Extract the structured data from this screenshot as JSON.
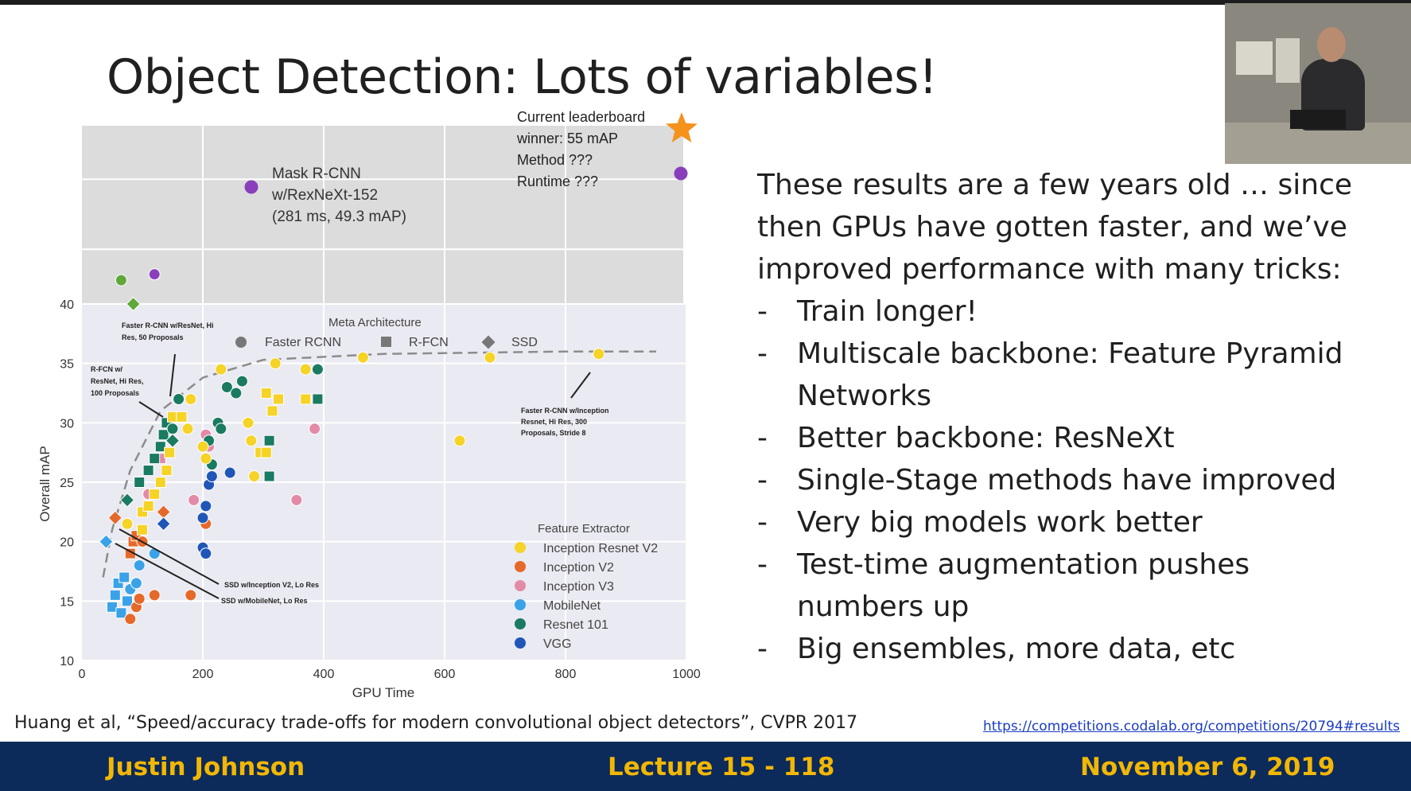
{
  "slide": {
    "title": "Object Detection: Lots of variables!",
    "intro_text": "These results are a few years old … since then GPUs have gotten faster, and we’ve improved performance with many tricks:",
    "bullets": [
      {
        "dash": "-",
        "text": "Train longer!"
      },
      {
        "dash": "-",
        "text": "Multiscale backbone: Feature Pyramid Networks"
      },
      {
        "dash": "-",
        "text": "Better backbone: ResNeXt"
      },
      {
        "dash": "-",
        "text": "Single-Stage methods have improved"
      },
      {
        "dash": "-",
        "text": "Very big models work better"
      },
      {
        "dash": "-",
        "text": "Test-time augmentation pushes numbers up"
      },
      {
        "dash": "-",
        "text": "Big ensembles, more data, etc"
      }
    ],
    "citation": "Huang et al, “Speed/accuracy trade-offs for modern convolutional object detectors”, CVPR 2017",
    "source_link": "https://competitions.codalab.org/competitions/20794#results"
  },
  "footer": {
    "author": "Justin Johnson",
    "lecture": "Lecture 15 - 118",
    "date": "November 6, 2019"
  },
  "colors": {
    "footer_bg": "#0c2a5a",
    "footer_text": "#f2b705",
    "plot_bg": "#eaeaf2",
    "upper_bg": "#dcdcdc",
    "inception_resnet_v2": "#f5d327",
    "inception_v2": "#e5692a",
    "inception_v3": "#e38aa6",
    "mobilenet": "#3aa2e8",
    "resnet_101": "#1a7a62",
    "vgg": "#2056b8",
    "mask_rcnn": "#8a3fba",
    "leaderboard_star": "#f5921c",
    "extra_green": "#5fa83a"
  },
  "chart_data": {
    "type": "scatter",
    "title": "",
    "xlabel": "GPU Time",
    "ylabel": "Overall mAP",
    "xlim": [
      0,
      1000
    ],
    "ylim": [
      10,
      40
    ],
    "x_ticks": [
      "0",
      "200",
      "400",
      "600",
      "800",
      "1000"
    ],
    "y_ticks": [
      "10",
      "15",
      "20",
      "25",
      "30",
      "35",
      "40"
    ],
    "grid": true,
    "legend_meta": {
      "title": "Meta Architecture",
      "entries": [
        {
          "label": "Faster RCNN",
          "marker": "circle"
        },
        {
          "label": "R-FCN",
          "marker": "square"
        },
        {
          "label": "SSD",
          "marker": "diamond"
        }
      ]
    },
    "legend_feature": {
      "title": "Feature Extractor",
      "entries": [
        {
          "label": "Inception Resnet V2",
          "key": "irv2"
        },
        {
          "label": "Inception V2",
          "key": "iv2"
        },
        {
          "label": "Inception V3",
          "key": "iv3"
        },
        {
          "label": "MobileNet",
          "key": "mob"
        },
        {
          "label": "Resnet 101",
          "key": "r101"
        },
        {
          "label": "VGG",
          "key": "vgg"
        }
      ]
    },
    "frontier": [
      [
        35,
        17
      ],
      [
        50,
        21
      ],
      [
        80,
        26
      ],
      [
        130,
        31
      ],
      [
        200,
        33.8
      ],
      [
        300,
        35.3
      ],
      [
        500,
        35.8
      ],
      [
        800,
        36
      ],
      [
        950,
        36
      ]
    ],
    "points": [
      {
        "x": 50,
        "y": 14.5,
        "f": "mob",
        "m": "s"
      },
      {
        "x": 55,
        "y": 15.5,
        "f": "mob",
        "m": "s"
      },
      {
        "x": 60,
        "y": 16.5,
        "f": "mob",
        "m": "s"
      },
      {
        "x": 65,
        "y": 14,
        "f": "mob",
        "m": "s"
      },
      {
        "x": 70,
        "y": 17,
        "f": "mob",
        "m": "s"
      },
      {
        "x": 75,
        "y": 15,
        "f": "mob",
        "m": "s"
      },
      {
        "x": 80,
        "y": 16,
        "f": "mob",
        "m": "c"
      },
      {
        "x": 90,
        "y": 16.5,
        "f": "mob",
        "m": "c"
      },
      {
        "x": 95,
        "y": 18,
        "f": "mob",
        "m": "c"
      },
      {
        "x": 120,
        "y": 19,
        "f": "mob",
        "m": "c"
      },
      {
        "x": 40,
        "y": 20,
        "f": "mob",
        "m": "d"
      },
      {
        "x": 55,
        "y": 22,
        "f": "iv2",
        "m": "d"
      },
      {
        "x": 80,
        "y": 19,
        "f": "iv2",
        "m": "s"
      },
      {
        "x": 85,
        "y": 20,
        "f": "iv2",
        "m": "s"
      },
      {
        "x": 90,
        "y": 20.5,
        "f": "iv2",
        "m": "s"
      },
      {
        "x": 100,
        "y": 20,
        "f": "iv2",
        "m": "c"
      },
      {
        "x": 80,
        "y": 13.5,
        "f": "iv2",
        "m": "c"
      },
      {
        "x": 90,
        "y": 14.5,
        "f": "iv2",
        "m": "c"
      },
      {
        "x": 95,
        "y": 15.2,
        "f": "iv2",
        "m": "c"
      },
      {
        "x": 120,
        "y": 15.5,
        "f": "iv2",
        "m": "c"
      },
      {
        "x": 180,
        "y": 15.5,
        "f": "iv2",
        "m": "c"
      },
      {
        "x": 135,
        "y": 22.5,
        "f": "iv2",
        "m": "d"
      },
      {
        "x": 205,
        "y": 21.5,
        "f": "iv2",
        "m": "c"
      },
      {
        "x": 110,
        "y": 24,
        "f": "iv3",
        "m": "c"
      },
      {
        "x": 185,
        "y": 23.5,
        "f": "iv3",
        "m": "c"
      },
      {
        "x": 205,
        "y": 29,
        "f": "iv3",
        "m": "c"
      },
      {
        "x": 210,
        "y": 28,
        "f": "iv3",
        "m": "c"
      },
      {
        "x": 355,
        "y": 23.5,
        "f": "iv3",
        "m": "c"
      },
      {
        "x": 385,
        "y": 29.5,
        "f": "iv3",
        "m": "c"
      },
      {
        "x": 130,
        "y": 27,
        "f": "iv3",
        "m": "s"
      },
      {
        "x": 75,
        "y": 23.5,
        "f": "r101",
        "m": "d"
      },
      {
        "x": 95,
        "y": 25,
        "f": "r101",
        "m": "s"
      },
      {
        "x": 110,
        "y": 26,
        "f": "r101",
        "m": "s"
      },
      {
        "x": 120,
        "y": 27,
        "f": "r101",
        "m": "s"
      },
      {
        "x": 130,
        "y": 28,
        "f": "r101",
        "m": "s"
      },
      {
        "x": 135,
        "y": 29,
        "f": "r101",
        "m": "s"
      },
      {
        "x": 140,
        "y": 30,
        "f": "r101",
        "m": "s"
      },
      {
        "x": 150,
        "y": 29.5,
        "f": "r101",
        "m": "c"
      },
      {
        "x": 160,
        "y": 32,
        "f": "r101",
        "m": "c"
      },
      {
        "x": 210,
        "y": 28.5,
        "f": "r101",
        "m": "c"
      },
      {
        "x": 215,
        "y": 26.5,
        "f": "r101",
        "m": "c"
      },
      {
        "x": 225,
        "y": 30,
        "f": "r101",
        "m": "c"
      },
      {
        "x": 240,
        "y": 33,
        "f": "r101",
        "m": "c"
      },
      {
        "x": 255,
        "y": 32.5,
        "f": "r101",
        "m": "c"
      },
      {
        "x": 265,
        "y": 33.5,
        "f": "r101",
        "m": "c"
      },
      {
        "x": 310,
        "y": 28.5,
        "f": "r101",
        "m": "s"
      },
      {
        "x": 310,
        "y": 25.5,
        "f": "r101",
        "m": "s"
      },
      {
        "x": 390,
        "y": 32,
        "f": "r101",
        "m": "s"
      },
      {
        "x": 390,
        "y": 34.5,
        "f": "r101",
        "m": "c"
      },
      {
        "x": 230,
        "y": 29.5,
        "f": "r101",
        "m": "c"
      },
      {
        "x": 150,
        "y": 28.5,
        "f": "r101",
        "m": "d"
      },
      {
        "x": 75,
        "y": 21.5,
        "f": "irv2",
        "m": "c"
      },
      {
        "x": 100,
        "y": 21,
        "f": "irv2",
        "m": "s"
      },
      {
        "x": 100,
        "y": 22.5,
        "f": "irv2",
        "m": "s"
      },
      {
        "x": 110,
        "y": 23,
        "f": "irv2",
        "m": "s"
      },
      {
        "x": 120,
        "y": 24,
        "f": "irv2",
        "m": "s"
      },
      {
        "x": 130,
        "y": 25,
        "f": "irv2",
        "m": "s"
      },
      {
        "x": 140,
        "y": 26,
        "f": "irv2",
        "m": "s"
      },
      {
        "x": 145,
        "y": 27.5,
        "f": "irv2",
        "m": "s"
      },
      {
        "x": 150,
        "y": 30.5,
        "f": "irv2",
        "m": "s"
      },
      {
        "x": 165,
        "y": 30.5,
        "f": "irv2",
        "m": "s"
      },
      {
        "x": 175,
        "y": 29.5,
        "f": "irv2",
        "m": "c"
      },
      {
        "x": 180,
        "y": 32,
        "f": "irv2",
        "m": "c"
      },
      {
        "x": 200,
        "y": 28,
        "f": "irv2",
        "m": "c"
      },
      {
        "x": 205,
        "y": 27,
        "f": "irv2",
        "m": "c"
      },
      {
        "x": 230,
        "y": 34.5,
        "f": "irv2",
        "m": "c"
      },
      {
        "x": 275,
        "y": 30,
        "f": "irv2",
        "m": "c"
      },
      {
        "x": 280,
        "y": 28.5,
        "f": "irv2",
        "m": "c"
      },
      {
        "x": 285,
        "y": 25.5,
        "f": "irv2",
        "m": "c"
      },
      {
        "x": 295,
        "y": 27.5,
        "f": "irv2",
        "m": "s"
      },
      {
        "x": 305,
        "y": 27.5,
        "f": "irv2",
        "m": "s"
      },
      {
        "x": 305,
        "y": 32.5,
        "f": "irv2",
        "m": "s"
      },
      {
        "x": 315,
        "y": 31,
        "f": "irv2",
        "m": "s"
      },
      {
        "x": 325,
        "y": 32,
        "f": "irv2",
        "m": "s"
      },
      {
        "x": 320,
        "y": 35,
        "f": "irv2",
        "m": "c"
      },
      {
        "x": 370,
        "y": 34.5,
        "f": "irv2",
        "m": "c"
      },
      {
        "x": 370,
        "y": 32,
        "f": "irv2",
        "m": "s"
      },
      {
        "x": 465,
        "y": 35.5,
        "f": "irv2",
        "m": "c"
      },
      {
        "x": 625,
        "y": 28.5,
        "f": "irv2",
        "m": "c"
      },
      {
        "x": 675,
        "y": 35.5,
        "f": "irv2",
        "m": "c"
      },
      {
        "x": 855,
        "y": 35.8,
        "f": "irv2",
        "m": "c"
      },
      {
        "x": 200,
        "y": 22,
        "f": "vgg",
        "m": "c"
      },
      {
        "x": 205,
        "y": 23,
        "f": "vgg",
        "m": "c"
      },
      {
        "x": 200,
        "y": 19.5,
        "f": "vgg",
        "m": "c"
      },
      {
        "x": 205,
        "y": 19,
        "f": "vgg",
        "m": "c"
      },
      {
        "x": 210,
        "y": 24.8,
        "f": "vgg",
        "m": "c"
      },
      {
        "x": 215,
        "y": 25.5,
        "f": "vgg",
        "m": "c"
      },
      {
        "x": 245,
        "y": 25.8,
        "f": "vgg",
        "m": "c"
      },
      {
        "x": 135,
        "y": 21.5,
        "f": "vgg",
        "m": "d"
      }
    ],
    "extra_points": [
      {
        "x": 65,
        "y": 42,
        "color": "extra_green",
        "m": "c"
      },
      {
        "x": 120,
        "y": 42.5,
        "color": "mask_rcnn",
        "m": "c"
      },
      {
        "x": 85,
        "y": 40,
        "color": "extra_green",
        "m": "d"
      }
    ],
    "upper_points": [
      {
        "x": 281,
        "y": 49.3,
        "color": "mask_rcnn",
        "label": "Mask R-CNN w/RexNeXt-152 (281 ms, 49.3 mAP)"
      },
      {
        "x": 1000,
        "y": 50.5,
        "color": "mask_rcnn",
        "label": ""
      },
      {
        "x": 1000,
        "y": 55,
        "color": "leaderboard_star",
        "label": "Current leaderboard winner: 55 mAP Method ??? Runtime ???"
      }
    ],
    "annotations": {
      "mask_rcnn_lines": [
        "Mask R-CNN",
        "w/RexNeXt-152",
        "(281 ms, 49.3 mAP)"
      ],
      "leaderboard_lines": [
        "Current leaderboard",
        "winner: 55 mAP",
        "Method ???",
        "Runtime ???"
      ],
      "frcnn_resnet_lines": [
        "Faster R-CNN w/ResNet, Hi",
        "Res, 50 Proposals"
      ],
      "rfcn_lines": [
        "R-FCN w/",
        "ResNet, Hi Res,",
        "100 Proposals"
      ],
      "frcnn_inception_lines": [
        "Faster R-CNN w/Inception",
        "Resnet, Hi Res, 300",
        "Proposals, Stride 8"
      ],
      "ssd_inception": "SSD w/Inception V2, Lo Res",
      "ssd_mobilenet": "SSD w/MobileNet, Lo Res"
    }
  }
}
